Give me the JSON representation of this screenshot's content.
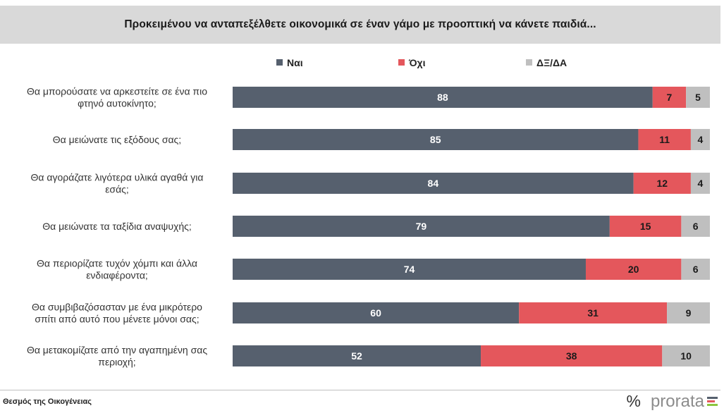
{
  "title": "Προκειμένου να ανταπεξέλθετε οικονομικά σε έναν γάμο με προοπτική να κάνετε παιδιά...",
  "footer": {
    "source": "Θεσμός της Οικογένειας",
    "brand": "prorata",
    "brand_symbol": "%"
  },
  "colors": {
    "Ναι": "#56606e",
    "Όχι": "#e4575c",
    "ΔΞ/ΔΑ": "#bfbfbf",
    "title_band": "#d9d9d9"
  },
  "chart_data": {
    "type": "bar",
    "orientation": "horizontal",
    "stacked": true,
    "title": "Προκειμένου να ανταπεξέλθετε οικονομικά σε έναν γάμο με προοπτική να κάνετε παιδιά...",
    "legend_position": "top",
    "xlim": [
      0,
      100
    ],
    "categories": [
      [
        "Θα μπορούσατε να αρκεστείτε σε ένα πιο",
        "φτηνό αυτοκίνητο;"
      ],
      [
        "Θα μειώνατε τις εξόδους σας;"
      ],
      [
        "Θα αγοράζατε λιγότερα υλικά αγαθά για",
        "εσάς;"
      ],
      [
        "Θα μειώνατε τα ταξίδια αναψυχής;"
      ],
      [
        "Θα περιορίζατε τυχόν χόμπι και άλλα",
        "ενδιαφέροντα;"
      ],
      [
        "Θα συμβιβαζόσασταν με ένα μικρότερο",
        "σπίτι από αυτό που μένετε μόνοι σας;"
      ],
      [
        "Θα μετακομίζατε από την αγαπημένη σας",
        "περιοχή;"
      ]
    ],
    "series": [
      {
        "name": "Ναι",
        "values": [
          88,
          85,
          84,
          79,
          74,
          60,
          52
        ]
      },
      {
        "name": "Όχι",
        "values": [
          7,
          11,
          12,
          15,
          20,
          31,
          38
        ]
      },
      {
        "name": "ΔΞ/ΔΑ",
        "values": [
          5,
          4,
          4,
          6,
          6,
          9,
          10
        ]
      }
    ]
  }
}
